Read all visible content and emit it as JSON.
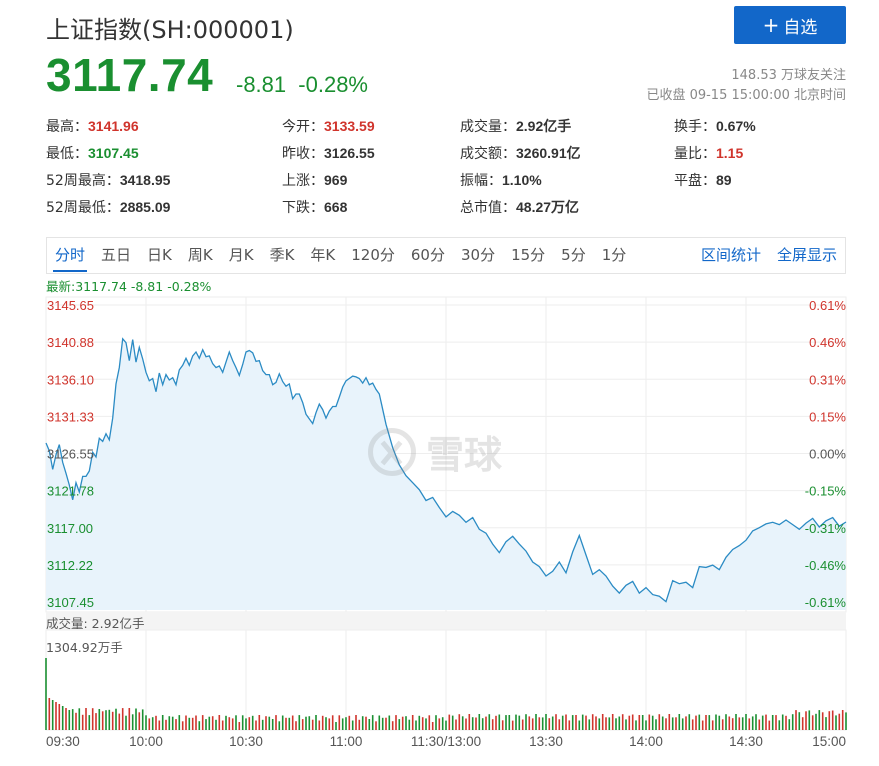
{
  "header": {
    "title": "上证指数(SH:000001)",
    "add_button": "自选",
    "price": "3117.74",
    "change": "-8.81",
    "change_pct": "-0.28%",
    "followers": "148.53 万球友关注",
    "status": "已收盘 09-15 15:00:00 北京时间"
  },
  "stats": [
    {
      "label": "最高：",
      "value": "3141.96",
      "tone": "red"
    },
    {
      "label": "今开：",
      "value": "3133.59",
      "tone": "red"
    },
    {
      "label": "成交量：",
      "value": "2.92亿手",
      "tone": ""
    },
    {
      "label": "换手：",
      "value": "0.67%",
      "tone": ""
    },
    {
      "label": "最低：",
      "value": "3107.45",
      "tone": "green"
    },
    {
      "label": "昨收：",
      "value": "3126.55",
      "tone": ""
    },
    {
      "label": "成交额：",
      "value": "3260.91亿",
      "tone": ""
    },
    {
      "label": "量比：",
      "value": "1.15",
      "tone": "red"
    },
    {
      "label": "52周最高：",
      "value": "3418.95",
      "tone": ""
    },
    {
      "label": "上涨：",
      "value": "969",
      "tone": ""
    },
    {
      "label": "振幅：",
      "value": "1.10%",
      "tone": ""
    },
    {
      "label": "平盘：",
      "value": "89",
      "tone": ""
    },
    {
      "label": "52周最低：",
      "value": "2885.09",
      "tone": ""
    },
    {
      "label": "下跌：",
      "value": "668",
      "tone": ""
    },
    {
      "label": "总市值：",
      "value": "48.27万亿",
      "tone": ""
    }
  ],
  "tabs": [
    "分时",
    "五日",
    "日K",
    "周K",
    "月K",
    "季K",
    "年K",
    "120分",
    "60分",
    "30分",
    "15分",
    "5分",
    "1分"
  ],
  "tabs_right": [
    "区间统计",
    "全屏显示"
  ],
  "latest_line": "最新:3117.74 -8.81 -0.28%",
  "watermark": "雪球",
  "volume": {
    "label": "成交量: 2.92亿手",
    "max_label": "1304.92万手"
  },
  "colors": {
    "up": "#d0342c",
    "down": "#1a8f30",
    "line": "#2b8bc4",
    "fill": "#e8f3fb",
    "accent": "#1267c9"
  },
  "chart_data": {
    "type": "line",
    "title": "",
    "prev_close": 3126.55,
    "ylim": [
      3107.45,
      3145.65
    ],
    "left_ticks": [
      "3145.65",
      "3140.88",
      "3136.10",
      "3131.33",
      "3126.55",
      "3121.78",
      "3117.00",
      "3112.22",
      "3107.45"
    ],
    "right_ticks": [
      "0.61%",
      "0.46%",
      "0.31%",
      "0.15%",
      "0.00%",
      "-0.15%",
      "-0.31%",
      "-0.46%",
      "-0.61%"
    ],
    "x_ticks": [
      "09:30",
      "10:00",
      "10:30",
      "11:00",
      "11:30/13:00",
      "13:30",
      "14:00",
      "14:30",
      "15:00"
    ],
    "x_minutes_range": [
      0,
      240
    ],
    "price_points": [
      [
        0,
        3127.9
      ],
      [
        1,
        3126.9
      ],
      [
        2,
        3124.5
      ],
      [
        3,
        3126.4
      ],
      [
        4,
        3127.7
      ],
      [
        5,
        3125.4
      ],
      [
        6,
        3124.0
      ],
      [
        7,
        3122.5
      ],
      [
        8,
        3120.6
      ],
      [
        9,
        3122.8
      ],
      [
        10,
        3121.6
      ],
      [
        11,
        3123.6
      ],
      [
        12,
        3123.6
      ],
      [
        13,
        3124.3
      ],
      [
        14,
        3126.7
      ],
      [
        15,
        3126.1
      ],
      [
        16,
        3128.5
      ],
      [
        17,
        3128.1
      ],
      [
        18,
        3129.1
      ],
      [
        19,
        3128.3
      ],
      [
        20,
        3131.1
      ],
      [
        21,
        3135.5
      ],
      [
        22,
        3137.6
      ],
      [
        23,
        3141.3
      ],
      [
        24,
        3140.8
      ],
      [
        25,
        3138.5
      ],
      [
        26,
        3141.2
      ],
      [
        27,
        3138.3
      ],
      [
        28,
        3140.2
      ],
      [
        29,
        3138.7
      ],
      [
        30,
        3137.0
      ],
      [
        31,
        3135.9
      ],
      [
        32,
        3136.2
      ],
      [
        33,
        3134.5
      ],
      [
        34,
        3136.9
      ],
      [
        35,
        3135.4
      ],
      [
        36,
        3136.7
      ],
      [
        37,
        3136.0
      ],
      [
        38,
        3136.3
      ],
      [
        39,
        3135.4
      ],
      [
        40,
        3137.3
      ],
      [
        41,
        3137.9
      ],
      [
        42,
        3138.8
      ],
      [
        43,
        3137.9
      ],
      [
        44,
        3139.1
      ],
      [
        45,
        3139.6
      ],
      [
        46,
        3138.8
      ],
      [
        47,
        3139.9
      ],
      [
        48,
        3139.0
      ],
      [
        49,
        3139.1
      ],
      [
        50,
        3138.1
      ],
      [
        51,
        3137.6
      ],
      [
        52,
        3137.8
      ],
      [
        53,
        3137.0
      ],
      [
        54,
        3138.3
      ],
      [
        55,
        3139.6
      ],
      [
        56,
        3138.5
      ],
      [
        57,
        3137.6
      ],
      [
        58,
        3136.6
      ],
      [
        59,
        3138.0
      ],
      [
        60,
        3139.6
      ],
      [
        61,
        3139.8
      ],
      [
        62,
        3139.5
      ],
      [
        63,
        3138.4
      ],
      [
        64,
        3138.5
      ],
      [
        65,
        3137.2
      ],
      [
        66,
        3136.7
      ],
      [
        67,
        3136.7
      ],
      [
        68,
        3135.4
      ],
      [
        69,
        3135.7
      ],
      [
        70,
        3136.8
      ],
      [
        71,
        3135.8
      ],
      [
        72,
        3135.2
      ],
      [
        73,
        3135.5
      ],
      [
        74,
        3133.6
      ],
      [
        75,
        3134.2
      ],
      [
        76,
        3134.2
      ],
      [
        77,
        3133.1
      ],
      [
        78,
        3131.6
      ],
      [
        79,
        3131.0
      ],
      [
        80,
        3130.4
      ],
      [
        81,
        3131.8
      ],
      [
        82,
        3132.9
      ],
      [
        83,
        3132.2
      ],
      [
        84,
        3131.1
      ],
      [
        85,
        3132.0
      ],
      [
        86,
        3132.6
      ],
      [
        87,
        3132.6
      ],
      [
        88,
        3133.8
      ],
      [
        89,
        3135.1
      ],
      [
        90,
        3135.9
      ],
      [
        91,
        3136.2
      ],
      [
        92,
        3136.5
      ],
      [
        93,
        3136.4
      ],
      [
        94,
        3136.2
      ],
      [
        95,
        3135.6
      ],
      [
        96,
        3136.3
      ],
      [
        97,
        3135.4
      ],
      [
        98,
        3135.6
      ],
      [
        99,
        3134.8
      ],
      [
        100,
        3134.2
      ],
      [
        102,
        3130.3
      ],
      [
        104,
        3127.3
      ],
      [
        106,
        3125.1
      ],
      [
        108,
        3123.7
      ],
      [
        110,
        3122.8
      ],
      [
        112,
        3121.9
      ],
      [
        114,
        3120.5
      ],
      [
        116,
        3120.9
      ],
      [
        118,
        3119.6
      ],
      [
        120,
        3118.4
      ],
      [
        122,
        3119.1
      ],
      [
        124,
        3118.6
      ],
      [
        126,
        3117.7
      ],
      [
        128,
        3118.3
      ],
      [
        130,
        3116.8
      ],
      [
        132,
        3116.3
      ],
      [
        134,
        3114.9
      ],
      [
        136,
        3113.8
      ],
      [
        138,
        3115.2
      ],
      [
        140,
        3115.9
      ],
      [
        142,
        3114.9
      ],
      [
        144,
        3114.0
      ],
      [
        146,
        3112.6
      ],
      [
        148,
        3112.0
      ],
      [
        150,
        3110.8
      ],
      [
        152,
        3111.4
      ],
      [
        154,
        3112.6
      ],
      [
        156,
        3111.2
      ],
      [
        158,
        3113.9
      ],
      [
        160,
        3116.0
      ],
      [
        162,
        3113.5
      ],
      [
        164,
        3111.0
      ],
      [
        166,
        3111.6
      ],
      [
        168,
        3110.8
      ],
      [
        170,
        3109.5
      ],
      [
        172,
        3108.6
      ],
      [
        174,
        3109.6
      ],
      [
        176,
        3110.1
      ],
      [
        178,
        3108.6
      ],
      [
        180,
        3109.3
      ],
      [
        182,
        3108.4
      ],
      [
        184,
        3108.2
      ],
      [
        186,
        3107.5
      ],
      [
        188,
        3110.2
      ],
      [
        190,
        3109.8
      ],
      [
        192,
        3110.0
      ],
      [
        194,
        3109.3
      ],
      [
        196,
        3112.0
      ],
      [
        198,
        3111.9
      ],
      [
        200,
        3112.2
      ],
      [
        202,
        3111.6
      ],
      [
        204,
        3113.2
      ],
      [
        206,
        3114.2
      ],
      [
        208,
        3114.7
      ],
      [
        210,
        3115.4
      ],
      [
        212,
        3116.6
      ],
      [
        214,
        3117.0
      ],
      [
        216,
        3117.5
      ],
      [
        218,
        3117.7
      ],
      [
        220,
        3117.4
      ],
      [
        222,
        3118.0
      ],
      [
        224,
        3117.4
      ],
      [
        226,
        3116.8
      ],
      [
        228,
        3117.6
      ],
      [
        230,
        3118.2
      ],
      [
        232,
        3117.1
      ],
      [
        234,
        3117.9
      ],
      [
        236,
        3118.3
      ],
      [
        238,
        3117.2
      ],
      [
        240,
        3117.74
      ]
    ],
    "volume_max": 1304.92
  }
}
